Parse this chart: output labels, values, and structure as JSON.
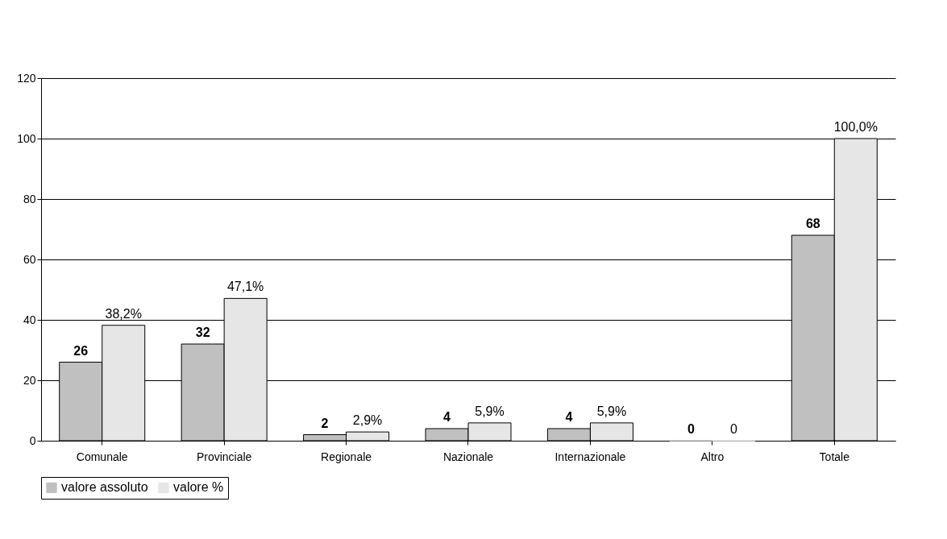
{
  "chart_data": {
    "type": "bar",
    "categories": [
      "Comunale",
      "Provinciale",
      "Regionale",
      "Nazionale",
      "Internazionale",
      "Altro",
      "Totale"
    ],
    "series": [
      {
        "name": "valore assoluto",
        "color": "#c0c0c0",
        "values": [
          26,
          32,
          2,
          4,
          4,
          0,
          68
        ],
        "value_labels": [
          "26",
          "32",
          "2",
          "4",
          "4",
          "0",
          "68"
        ]
      },
      {
        "name": "valore %",
        "color": "#e6e6e6",
        "values": [
          38.2,
          47.1,
          2.9,
          5.9,
          5.9,
          0,
          100
        ],
        "value_labels": [
          "38,2%",
          "47,1%",
          "2,9%",
          "5,9%",
          "5,9%",
          "0",
          "100,0%"
        ]
      }
    ],
    "ylim": [
      0,
      120
    ],
    "yticks": [
      0,
      20,
      40,
      60,
      80,
      100,
      120
    ],
    "grid": "y",
    "legend": "bottom left"
  }
}
